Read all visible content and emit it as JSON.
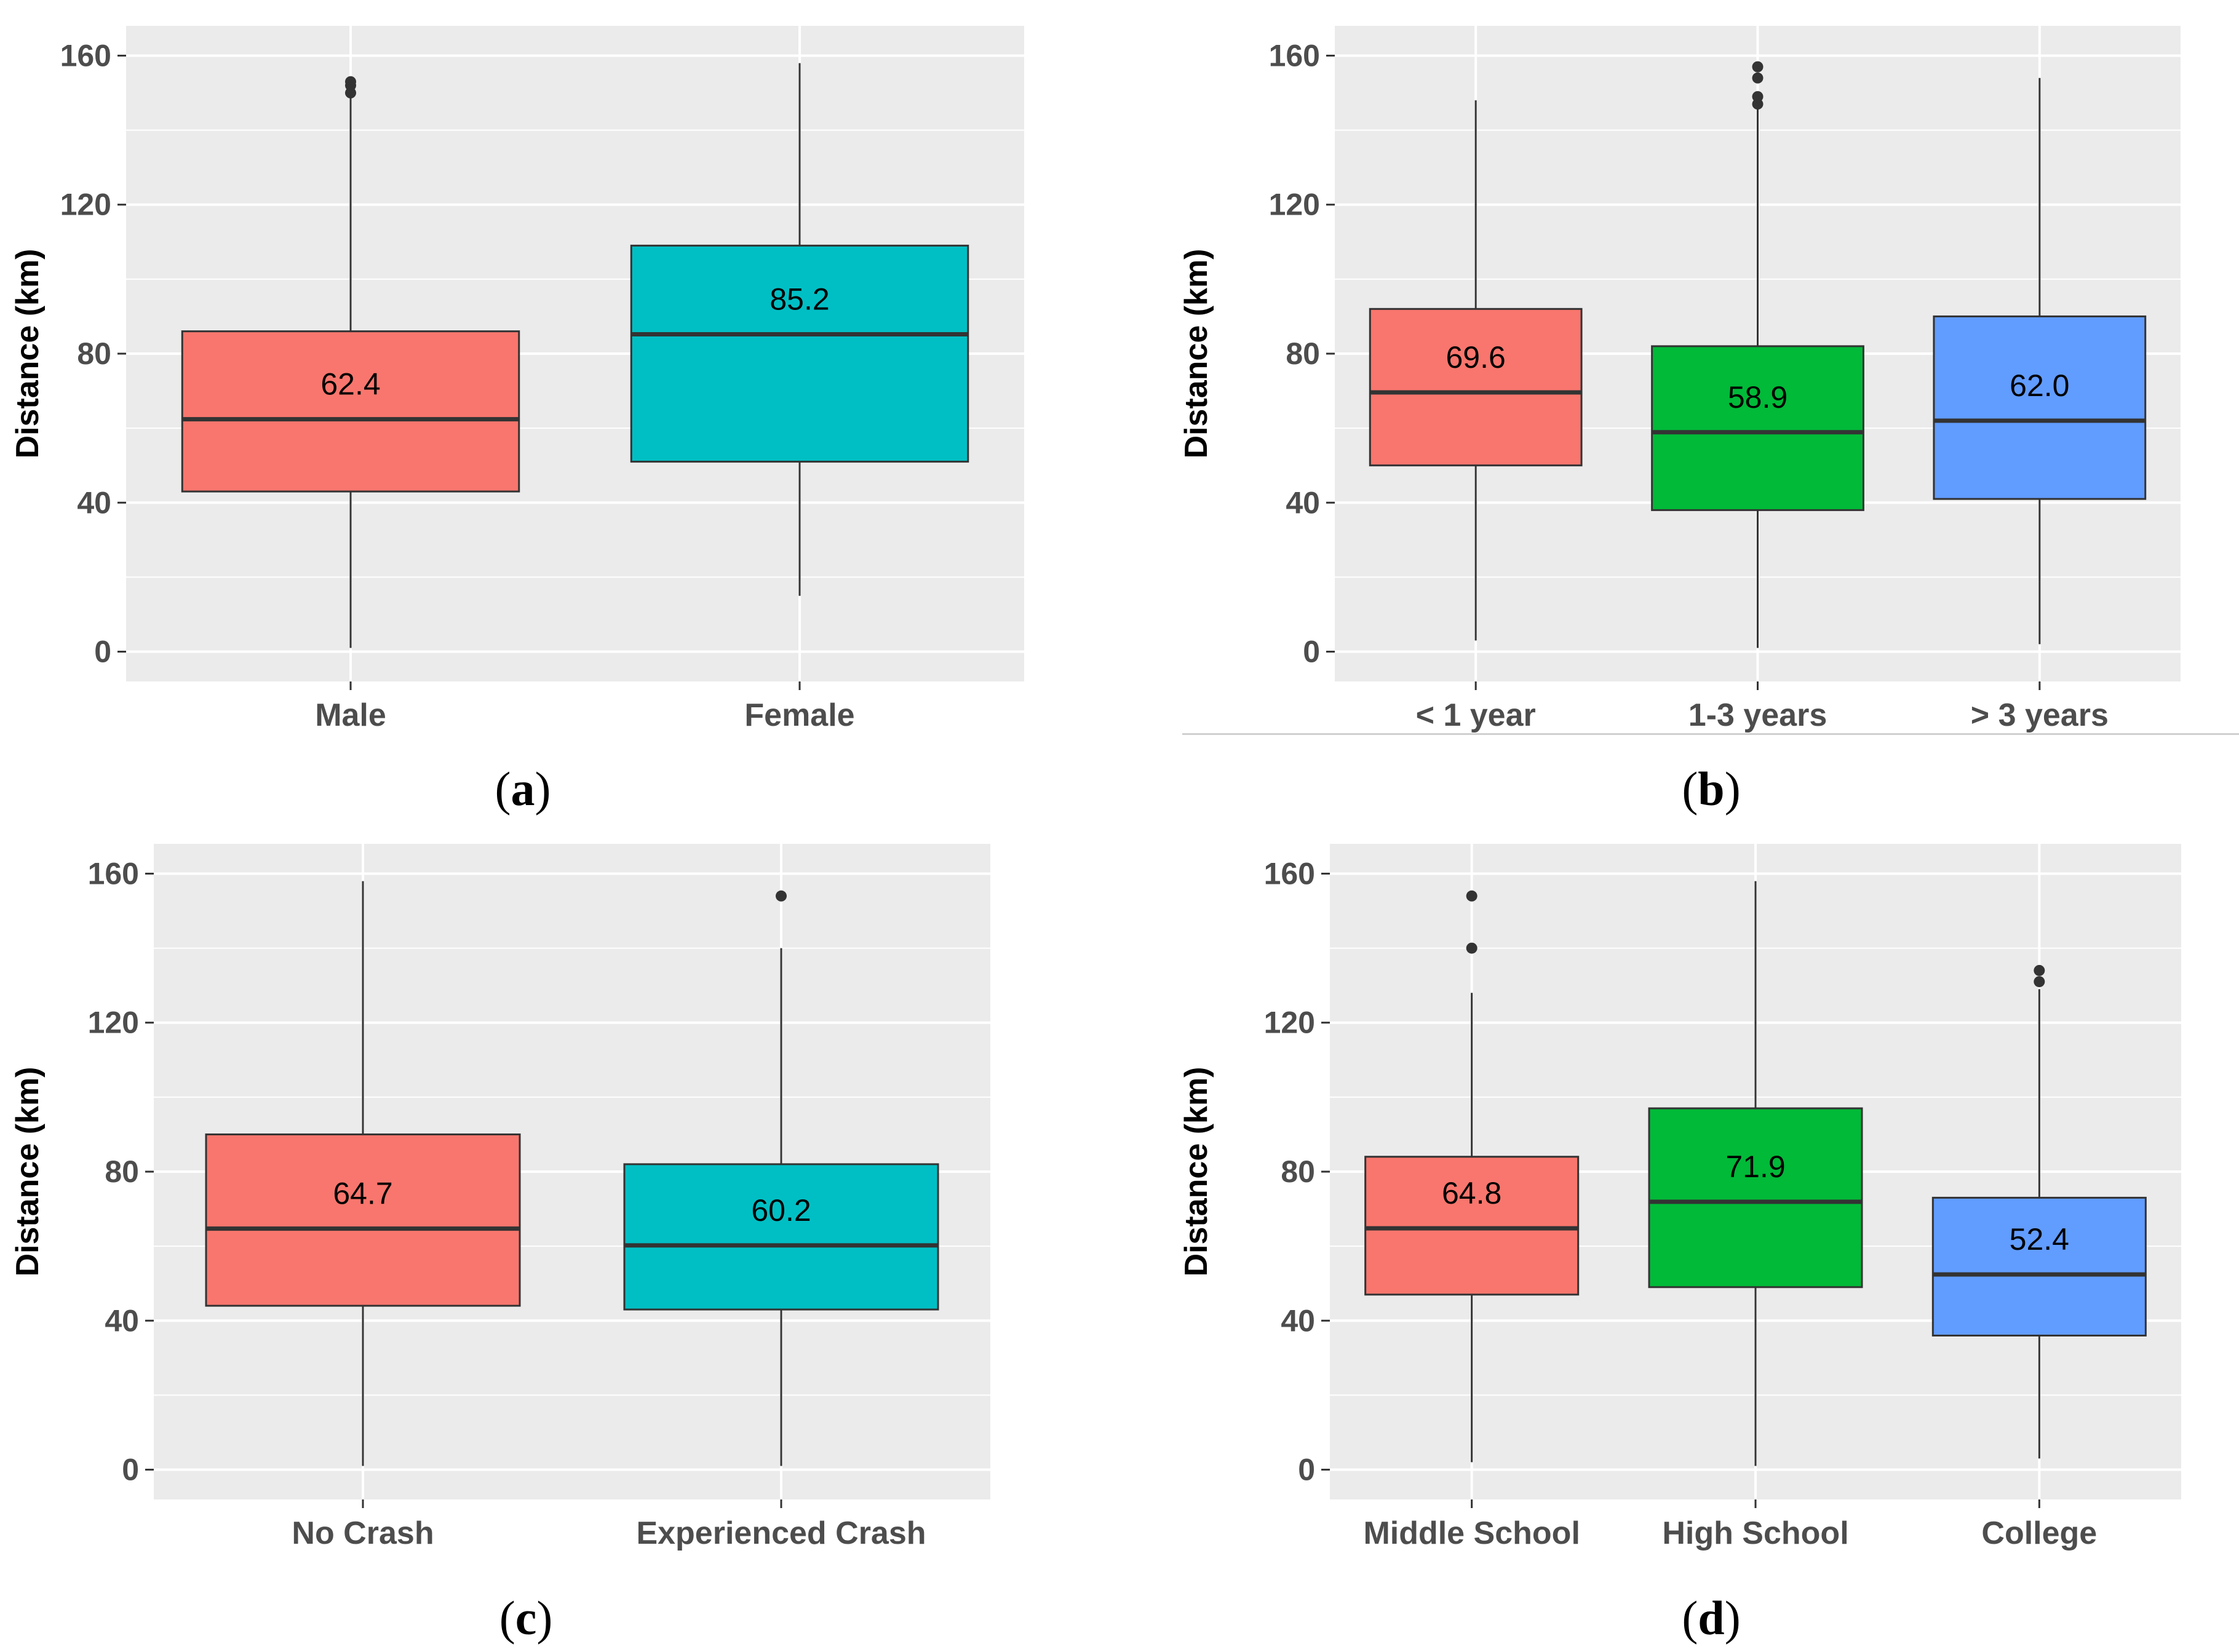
{
  "colors": {
    "panel_bg": "#EBEBEB",
    "grid": "#FFFFFF",
    "red": "#F8766D",
    "green": "#00BA38",
    "blue": "#619CFF",
    "teal": "#00BFC4",
    "median": "#333333",
    "outlier": "#333333",
    "axis_text": "#4D4D4D"
  },
  "chart_data": [
    {
      "id": "a",
      "type": "boxplot",
      "caption": "a",
      "ylabel": "Distance (km)",
      "ylim": [
        -8,
        168
      ],
      "yticks": [
        0,
        40,
        80,
        120,
        160
      ],
      "categories": [
        "Male",
        "Female"
      ],
      "boxes": [
        {
          "category": "Male",
          "color": "#F8766D",
          "label": "62.4",
          "median": 62.4,
          "q1": 43,
          "q3": 86,
          "whisker_low": 1,
          "whisker_high": 150,
          "outliers": [
            150,
            152,
            153
          ]
        },
        {
          "category": "Female",
          "color": "#00BFC4",
          "label": "85.2",
          "median": 85.2,
          "q1": 51,
          "q3": 109,
          "whisker_low": 15,
          "whisker_high": 158,
          "outliers": []
        }
      ]
    },
    {
      "id": "b",
      "type": "boxplot",
      "caption": "b",
      "ylabel": "Distance (km)",
      "ylim": [
        -8,
        168
      ],
      "yticks": [
        0,
        40,
        80,
        120,
        160
      ],
      "categories": [
        "< 1 year",
        "1-3 years",
        "> 3 years"
      ],
      "boxes": [
        {
          "category": "< 1 year",
          "color": "#F8766D",
          "label": "69.6",
          "median": 69.6,
          "q1": 50,
          "q3": 92,
          "whisker_low": 3,
          "whisker_high": 148,
          "outliers": []
        },
        {
          "category": "1-3 years",
          "color": "#00BA38",
          "label": "58.9",
          "median": 58.9,
          "q1": 38,
          "q3": 82,
          "whisker_low": 1,
          "whisker_high": 146,
          "outliers": [
            147,
            149,
            154,
            157
          ]
        },
        {
          "category": "> 3 years",
          "color": "#619CFF",
          "label": "62.0",
          "median": 62.0,
          "q1": 41,
          "q3": 90,
          "whisker_low": 2,
          "whisker_high": 154,
          "outliers": []
        }
      ]
    },
    {
      "id": "c",
      "type": "boxplot",
      "caption": "c",
      "ylabel": "Distance (km)",
      "ylim": [
        -8,
        168
      ],
      "yticks": [
        0,
        40,
        80,
        120,
        160
      ],
      "categories": [
        "No Crash",
        "Experienced Crash"
      ],
      "boxes": [
        {
          "category": "No Crash",
          "color": "#F8766D",
          "label": "64.7",
          "median": 64.7,
          "q1": 44,
          "q3": 90,
          "whisker_low": 1,
          "whisker_high": 158,
          "outliers": []
        },
        {
          "category": "Experienced Crash",
          "color": "#00BFC4",
          "label": "60.2",
          "median": 60.2,
          "q1": 43,
          "q3": 82,
          "whisker_low": 1,
          "whisker_high": 140,
          "outliers": [
            154
          ]
        }
      ]
    },
    {
      "id": "d",
      "type": "boxplot",
      "caption": "d",
      "ylabel": "Distance (km)",
      "ylim": [
        -8,
        168
      ],
      "yticks": [
        0,
        40,
        80,
        120,
        160
      ],
      "categories": [
        "Middle School",
        "High School",
        "College"
      ],
      "boxes": [
        {
          "category": "Middle School",
          "color": "#F8766D",
          "label": "64.8",
          "median": 64.8,
          "q1": 47,
          "q3": 84,
          "whisker_low": 2,
          "whisker_high": 128,
          "outliers": [
            140,
            154
          ]
        },
        {
          "category": "High School",
          "color": "#00BA38",
          "label": "71.9",
          "median": 71.9,
          "q1": 49,
          "q3": 97,
          "whisker_low": 1,
          "whisker_high": 158,
          "outliers": []
        },
        {
          "category": "College",
          "color": "#619CFF",
          "label": "52.4",
          "median": 52.4,
          "q1": 36,
          "q3": 73,
          "whisker_low": 3,
          "whisker_high": 129,
          "outliers": [
            131,
            134
          ]
        }
      ]
    }
  ]
}
